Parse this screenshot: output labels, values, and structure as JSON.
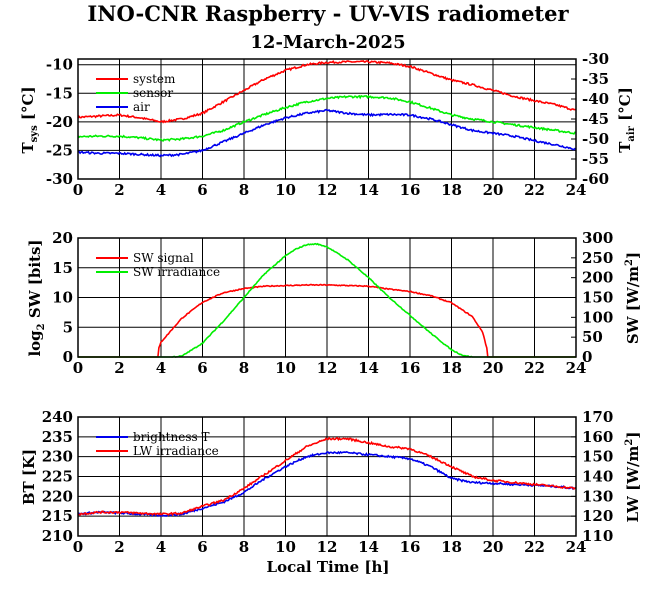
{
  "title": "INO-CNR Raspberry - UV-VIS radiometer",
  "subtitle": "12-March-2025",
  "chart_data": [
    {
      "type": "line",
      "ylabel_left": "T_sys [°C]",
      "ylabel_right": "T_air [°C]",
      "xlim": [
        0,
        24
      ],
      "xticks": [
        0,
        2,
        4,
        6,
        8,
        10,
        12,
        14,
        16,
        18,
        20,
        22,
        24
      ],
      "ylim_left": [
        -30,
        -9
      ],
      "yticks_left": [
        -30,
        -25,
        -20,
        -15,
        -10
      ],
      "ylim_right": [
        -60,
        -30
      ],
      "yticks_right": [
        -60,
        -55,
        -50,
        -45,
        -40,
        -35,
        -30
      ],
      "grid": true,
      "legend_position": "top-left",
      "series": [
        {
          "name": "system",
          "axis": "left",
          "color": "#ff0000",
          "x": [
            0,
            1,
            2,
            3,
            4,
            5,
            6,
            7,
            8,
            9,
            10,
            11,
            12,
            13,
            14,
            15,
            16,
            17,
            18,
            19,
            20,
            21,
            22,
            23,
            24
          ],
          "y": [
            -19.2,
            -19.0,
            -18.8,
            -19.3,
            -20.0,
            -19.5,
            -18.5,
            -16.5,
            -14.5,
            -12.5,
            -11.0,
            -10.0,
            -9.6,
            -9.5,
            -9.5,
            -9.7,
            -10.3,
            -11.5,
            -12.7,
            -13.5,
            -14.5,
            -15.5,
            -16.3,
            -17.0,
            -18.0
          ]
        },
        {
          "name": "sensor",
          "axis": "left",
          "color": "#00ee00",
          "x": [
            0,
            1,
            2,
            3,
            4,
            5,
            6,
            7,
            8,
            9,
            10,
            11,
            12,
            13,
            14,
            15,
            16,
            17,
            18,
            19,
            20,
            21,
            22,
            23,
            24
          ],
          "y": [
            -22.6,
            -22.5,
            -22.5,
            -22.8,
            -23.2,
            -23.0,
            -22.5,
            -21.5,
            -20.0,
            -18.7,
            -17.5,
            -16.5,
            -15.9,
            -15.6,
            -15.6,
            -15.8,
            -16.5,
            -17.6,
            -18.8,
            -19.5,
            -20.0,
            -20.5,
            -21.0,
            -21.5,
            -22.0
          ]
        },
        {
          "name": "air",
          "axis": "left",
          "color": "#0000ee",
          "x": [
            0,
            1,
            2,
            3,
            4,
            5,
            6,
            7,
            8,
            9,
            10,
            11,
            12,
            13,
            14,
            15,
            16,
            17,
            18,
            19,
            20,
            21,
            22,
            23,
            24
          ],
          "y": [
            -25.3,
            -25.5,
            -25.5,
            -25.7,
            -25.9,
            -25.7,
            -25.0,
            -23.5,
            -22.0,
            -20.5,
            -19.3,
            -18.5,
            -18.0,
            -18.5,
            -18.8,
            -18.7,
            -18.8,
            -19.5,
            -20.5,
            -21.5,
            -22.0,
            -22.5,
            -23.3,
            -24.0,
            -24.8
          ]
        }
      ]
    },
    {
      "type": "line",
      "ylabel_left": "log2 SW [bits]",
      "ylabel_right": "SW [W/m2]",
      "xlim": [
        0,
        24
      ],
      "xticks": [
        0,
        2,
        4,
        6,
        8,
        10,
        12,
        14,
        16,
        18,
        20,
        22,
        24
      ],
      "ylim_left": [
        0,
        20
      ],
      "yticks_left": [
        0,
        5,
        10,
        15,
        20
      ],
      "ylim_right": [
        0,
        300
      ],
      "yticks_right": [
        0,
        50,
        100,
        150,
        200,
        250,
        300
      ],
      "grid": true,
      "legend_position": "top-left",
      "series": [
        {
          "name": "SW signal",
          "axis": "left",
          "color": "#ff0000",
          "x": [
            0,
            3.85,
            3.9,
            4.0,
            4.5,
            5,
            6,
            7,
            8,
            9,
            10,
            11,
            12,
            13,
            14,
            15,
            16,
            17,
            18,
            19,
            19.5,
            19.7,
            19.75,
            24
          ],
          "y": [
            0,
            0,
            1.5,
            2.5,
            4.5,
            6.5,
            9.2,
            10.8,
            11.5,
            11.9,
            12.0,
            12.1,
            12.1,
            12.0,
            11.9,
            11.4,
            11.0,
            10.3,
            9.1,
            6.8,
            4.2,
            1.5,
            0,
            0
          ]
        },
        {
          "name": "SW irradiance",
          "axis": "right",
          "color": "#00ee00",
          "x": [
            0,
            4.5,
            5,
            6,
            7,
            8,
            9,
            10,
            10.5,
            11,
            11.5,
            12,
            13,
            14,
            15,
            16,
            17,
            18,
            18.5,
            19,
            24
          ],
          "y": [
            0,
            0,
            2,
            35,
            90,
            150,
            210,
            255,
            272,
            283,
            285,
            278,
            245,
            200,
            150,
            105,
            60,
            18,
            5,
            0,
            0
          ]
        }
      ]
    },
    {
      "type": "line",
      "xlabel": "Local Time [h]",
      "ylabel_left": "BT [K]",
      "ylabel_right": "LW [W/m2]",
      "xlim": [
        0,
        24
      ],
      "xticks": [
        0,
        2,
        4,
        6,
        8,
        10,
        12,
        14,
        16,
        18,
        20,
        22,
        24
      ],
      "ylim_left": [
        210,
        240
      ],
      "yticks_left": [
        210,
        215,
        220,
        225,
        230,
        235,
        240
      ],
      "ylim_right": [
        110,
        170
      ],
      "yticks_right": [
        110,
        120,
        130,
        140,
        150,
        160,
        170
      ],
      "grid": true,
      "legend_position": "top-left",
      "series": [
        {
          "name": "brightness T",
          "axis": "left",
          "color": "#0000ee",
          "x": [
            0,
            1,
            2,
            3,
            4,
            5,
            6,
            7,
            8,
            9,
            10,
            11,
            12,
            13,
            14,
            15,
            16,
            17,
            18,
            19,
            20,
            21,
            22,
            23,
            24
          ],
          "y": [
            215.5,
            216.0,
            215.8,
            215.5,
            215.2,
            215.5,
            217.0,
            218.5,
            221.0,
            224.5,
            227.5,
            230.0,
            231.0,
            231.0,
            230.5,
            230.0,
            229.5,
            227.5,
            224.5,
            223.5,
            223.3,
            223.0,
            222.8,
            222.5,
            222.0
          ]
        },
        {
          "name": "LW irradiance",
          "axis": "right",
          "color": "#ff0000",
          "x": [
            0,
            1,
            2,
            3,
            4,
            5,
            6,
            7,
            8,
            9,
            10,
            11,
            12,
            13,
            14,
            15,
            16,
            17,
            18,
            19,
            20,
            21,
            22,
            23,
            24
          ],
          "y": [
            121,
            122,
            122,
            121.5,
            121,
            121.5,
            125,
            128,
            134,
            141,
            148,
            155,
            159,
            159,
            157,
            155,
            154,
            150,
            145,
            140,
            138,
            137,
            136,
            135,
            134
          ]
        }
      ]
    }
  ]
}
